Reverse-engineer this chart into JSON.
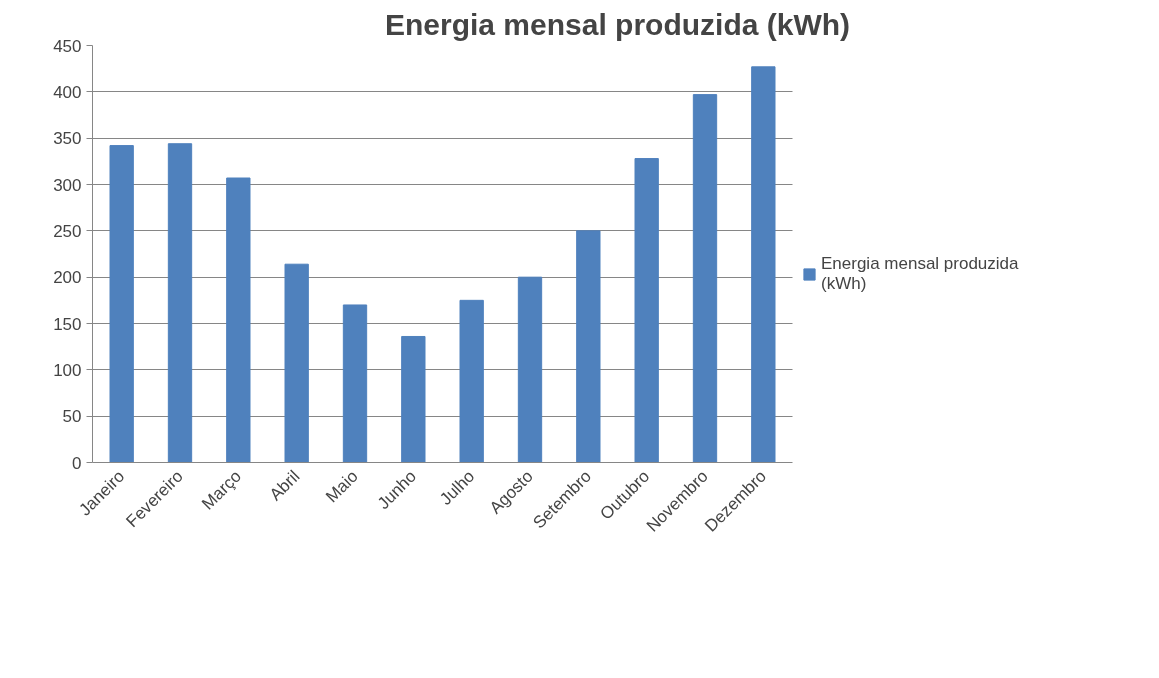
{
  "chart_data": {
    "type": "bar",
    "title": "Energia mensal produzida (kWh)",
    "categories": [
      "Janeiro",
      "Fevereiro",
      "Março",
      "Abril",
      "Maio",
      "Junho",
      "Julho",
      "Agosto",
      "Setembro",
      "Outubro",
      "Novembro",
      "Dezembro"
    ],
    "series": [
      {
        "name": "Energia mensal produzida (kWh)",
        "color": "#4f81bd",
        "values": [
          342,
          344,
          307,
          214,
          170,
          136,
          175,
          200,
          250,
          328,
          397,
          427
        ]
      }
    ],
    "ylim": [
      0,
      450
    ],
    "yticks": [
      0,
      50,
      100,
      150,
      200,
      250,
      300,
      350,
      400,
      450
    ],
    "grid": "y",
    "legend": "right"
  }
}
